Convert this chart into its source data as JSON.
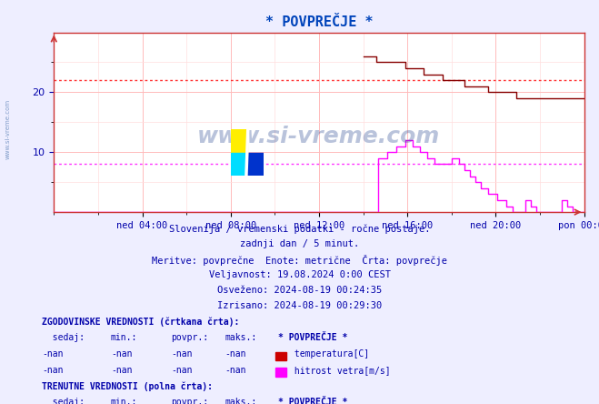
{
  "title": "* POVPREČJE *",
  "bg_color": "#eeeeff",
  "plot_bg": "#ffffff",
  "grid_color_major": "#ffbbbb",
  "grid_color_minor": "#ffdddd",
  "x_ticks_labels": [
    "ned 04:00",
    "ned 08:00",
    "ned 12:00",
    "ned 16:00",
    "ned 20:00",
    "pon 00:00"
  ],
  "x_ticks_pos": [
    48,
    96,
    144,
    192,
    240,
    288
  ],
  "ylim": [
    0,
    30
  ],
  "yticks": [
    10,
    20
  ],
  "hline_temp": 22.0,
  "hline_wind": 8.0,
  "hline_temp_color": "#ff3333",
  "hline_wind_color": "#ff33ff",
  "temp_color": "#880000",
  "wind_color": "#ff00ff",
  "title_color": "#0044bb",
  "axis_color": "#cc3333",
  "tick_color": "#0000aa",
  "text_color": "#0000aa",
  "watermark_color": "#1a3a8a",
  "n_points": 289,
  "temp_steps": [
    [
      168,
      26
    ],
    [
      175,
      25
    ],
    [
      191,
      24
    ],
    [
      201,
      23
    ],
    [
      211,
      22
    ],
    [
      223,
      21
    ],
    [
      236,
      20
    ],
    [
      251,
      19
    ],
    [
      288,
      19
    ]
  ],
  "wind_steps": [
    [
      0,
      0
    ],
    [
      176,
      9
    ],
    [
      181,
      10
    ],
    [
      186,
      11
    ],
    [
      191,
      12
    ],
    [
      195,
      11
    ],
    [
      199,
      10
    ],
    [
      203,
      9
    ],
    [
      207,
      8
    ],
    [
      216,
      9
    ],
    [
      220,
      8
    ],
    [
      223,
      7
    ],
    [
      226,
      6
    ],
    [
      229,
      5
    ],
    [
      232,
      4
    ],
    [
      236,
      3
    ],
    [
      241,
      2
    ],
    [
      246,
      1
    ],
    [
      249,
      0
    ],
    [
      256,
      2
    ],
    [
      259,
      1
    ],
    [
      262,
      0
    ],
    [
      276,
      2
    ],
    [
      279,
      1
    ],
    [
      282,
      0
    ],
    [
      288,
      0
    ]
  ],
  "info_line1": "Slovenija / vremenski podatki - ročne postaje.",
  "info_line2": "zadnji dan / 5 minut.",
  "info_line3": "Meritve: povprečne  Enote: metrične  Črta: povprečje",
  "info_line4": "Veljavnost: 19.08.2024 0:00 CEST",
  "info_line5": "Osveženo: 2024-08-19 00:24:35",
  "info_line6": "Izrisano: 2024-08-19 00:29:30"
}
